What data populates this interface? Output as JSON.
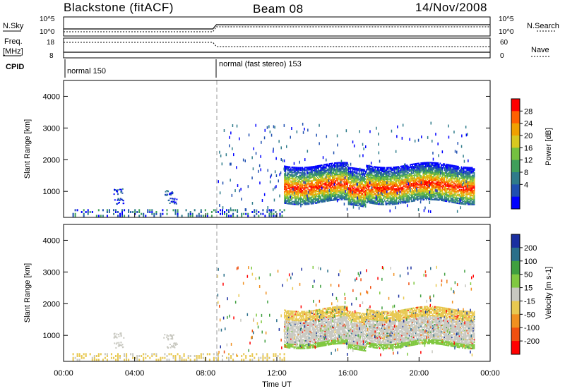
{
  "header": {
    "station": "Blackstone (fitACF)",
    "beam": "Beam 08",
    "date": "14/Nov/2008"
  },
  "panels": {
    "nsky_label": "N.Sky",
    "nsky_ticks": [
      "10^5",
      "10^0"
    ],
    "nsearch_label": "N.Search",
    "nsearch_ticks": [
      "10^5",
      "10^0"
    ],
    "freq_label": "Freq.",
    "freq_unit": "[MHz]",
    "freq_ticks": [
      "18",
      "8"
    ],
    "nave_label": "Nave",
    "nave_ticks": [
      "60",
      "0"
    ],
    "cpid_label": "CPID",
    "cpid_modes": [
      {
        "name": "normal 150",
        "start_hour": 0
      },
      {
        "name": "normal (fast stereo) 153",
        "start_hour": 8.6
      }
    ]
  },
  "chart_data": [
    {
      "type": "heatmap",
      "name": "power",
      "xlabel": "",
      "ylabel": "Slant Range [km]",
      "xlim": [
        0,
        24
      ],
      "ylim": [
        180,
        4500
      ],
      "yticks": [
        "1000",
        "2000",
        "3000",
        "4000"
      ],
      "colorbar_label": "Power [dB]",
      "colorbar_ticks": [
        "28",
        "24",
        "20",
        "16",
        "12",
        "8",
        "4"
      ],
      "colorbar_colors": [
        "#0000ff",
        "#1f4fb0",
        "#2e7b8a",
        "#3f9f5a",
        "#75c040",
        "#d8c820",
        "#f0a000",
        "#ff6000",
        "#ff0000"
      ],
      "regions": [
        {
          "x_start": 12.4,
          "x_end": 23.1,
          "range_start": 800,
          "range_end": 1800,
          "level": "mid"
        },
        {
          "x_start": 12.6,
          "x_end": 22.8,
          "range_start": 900,
          "range_end": 1400,
          "level": "high"
        },
        {
          "x_start": 0,
          "x_end": 8.6,
          "range_start": 180,
          "range_end": 350,
          "level": "low"
        }
      ]
    },
    {
      "type": "heatmap",
      "name": "velocity",
      "xlabel": "Time UT",
      "ylabel": "Slant Range [km]",
      "xlim": [
        0,
        24
      ],
      "ylim": [
        180,
        4500
      ],
      "yticks": [
        "1000",
        "2000",
        "3000",
        "4000"
      ],
      "xticks": [
        "00:00",
        "04:00",
        "08:00",
        "12:00",
        "16:00",
        "20:00",
        "00:00"
      ],
      "colorbar_label": "Velocity [m s-1]",
      "colorbar_ticks": [
        "200",
        "100",
        "50",
        "15",
        "-15",
        "-50",
        "-100",
        "-200"
      ],
      "colorbar_colors": [
        "#1a2fa0",
        "#2a6f8a",
        "#3f9f3f",
        "#80c840",
        "#c8c8c0",
        "#e8c850",
        "#f09020",
        "#f05010",
        "#ff0000"
      ]
    }
  ]
}
